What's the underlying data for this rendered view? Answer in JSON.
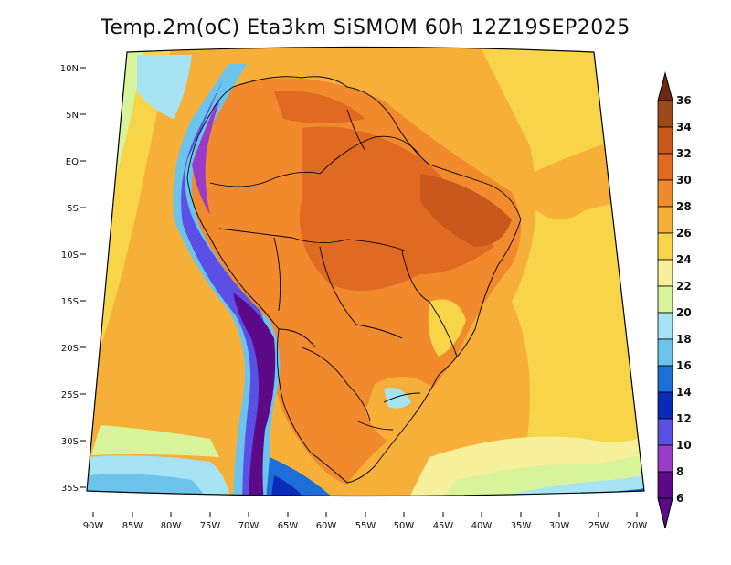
{
  "title": "Temp.2m(oC) Eta3km SiSMOM 60h 12Z19SEP2025",
  "axes": {
    "y_labels": [
      "10N",
      "5N",
      "EQ",
      "5S",
      "10S",
      "15S",
      "20S",
      "25S",
      "30S",
      "35S"
    ],
    "x_labels": [
      "90W",
      "85W",
      "80W",
      "75W",
      "70W",
      "65W",
      "60W",
      "55W",
      "50W",
      "45W",
      "40W",
      "35W",
      "30W",
      "25W",
      "20W"
    ]
  },
  "colorbar": {
    "labels": [
      "36",
      "34",
      "32",
      "30",
      "28",
      "26",
      "24",
      "22",
      "20",
      "18",
      "16",
      "14",
      "12",
      "10",
      "8",
      "6"
    ],
    "colors": [
      "#6e2a10",
      "#9c4a1a",
      "#c8581c",
      "#e06a22",
      "#f08a2c",
      "#f6b03a",
      "#f8d448",
      "#f6f09a",
      "#d8f49a",
      "#a6e4f4",
      "#6cc4ec",
      "#1c6ed8",
      "#0a2ab8",
      "#5a50e6",
      "#9a3cc8",
      "#5c0a88"
    ]
  }
}
